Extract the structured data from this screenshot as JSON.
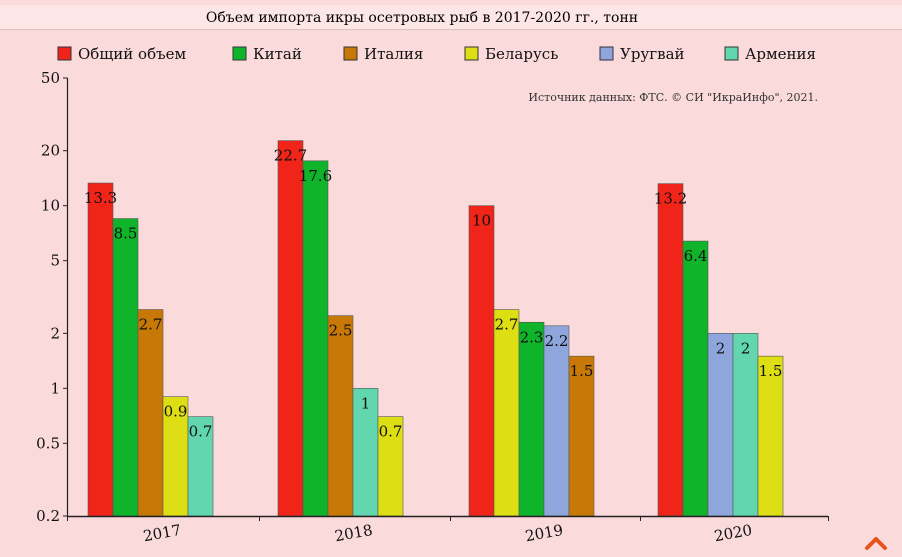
{
  "chart_data": {
    "type": "bar",
    "title": "Объем импорта икры осетровых рыб в 2017-2020 гг., тонн",
    "source_note": "Источник данных: ФТС. © СИ \"ИкраИнфо\", 2021.",
    "yscale": "log",
    "ylim": [
      0.2,
      50
    ],
    "yticks": [
      "50",
      "20",
      "10",
      "5",
      "2",
      "1",
      "0.5",
      "0.2"
    ],
    "ytick_values": [
      50,
      20,
      10,
      5,
      2,
      1,
      0.5,
      0.2
    ],
    "categories": [
      "2017",
      "2018",
      "2019",
      "2020"
    ],
    "legend_position": "top",
    "legend": [
      {
        "name": "Общий объем",
        "color": "#f02418"
      },
      {
        "name": "Китай",
        "color": "#10b42a"
      },
      {
        "name": "Италия",
        "color": "#c87806"
      },
      {
        "name": "Беларусь",
        "color": "#dede14"
      },
      {
        "name": "Уругвай",
        "color": "#8ea6dc"
      },
      {
        "name": "Армения",
        "color": "#62d6ae"
      }
    ],
    "groups": [
      {
        "category": "2017",
        "bars": [
          {
            "series": "Общий объем",
            "value": 13.3,
            "label": "13.3"
          },
          {
            "series": "Китай",
            "value": 8.5,
            "label": "8.5"
          },
          {
            "series": "Италия",
            "value": 2.7,
            "label": "2.7"
          },
          {
            "series": "Беларусь",
            "value": 0.9,
            "label": "0.9"
          },
          {
            "series": "Армения",
            "value": 0.7,
            "label": "0.7"
          }
        ]
      },
      {
        "category": "2018",
        "bars": [
          {
            "series": "Общий объем",
            "value": 22.7,
            "label": "22.7"
          },
          {
            "series": "Китай",
            "value": 17.6,
            "label": "17.6"
          },
          {
            "series": "Италия",
            "value": 2.5,
            "label": "2.5"
          },
          {
            "series": "Армения",
            "value": 1,
            "label": "1"
          },
          {
            "series": "Беларусь",
            "value": 0.7,
            "label": "0.7"
          }
        ]
      },
      {
        "category": "2019",
        "bars": [
          {
            "series": "Общий объем",
            "value": 10,
            "label": "10"
          },
          {
            "series": "Беларусь",
            "value": 2.7,
            "label": "2.7"
          },
          {
            "series": "Китай",
            "value": 2.3,
            "label": "2.3"
          },
          {
            "series": "Уругвай",
            "value": 2.2,
            "label": "2.2"
          },
          {
            "series": "Италия",
            "value": 1.5,
            "label": "1.5"
          }
        ]
      },
      {
        "category": "2020",
        "bars": [
          {
            "series": "Общий объем",
            "value": 13.2,
            "label": "13.2"
          },
          {
            "series": "Китай",
            "value": 6.4,
            "label": "6.4"
          },
          {
            "series": "Уругвай",
            "value": 2,
            "label": "2"
          },
          {
            "series": "Армения",
            "value": 2,
            "label": "2"
          },
          {
            "series": "Беларусь",
            "value": 1.5,
            "label": "1.5"
          }
        ]
      }
    ],
    "colors": {
      "background": "#fadadb",
      "title_bar": "#fce6e6",
      "axis": "#222222",
      "text": "#111111",
      "scroll_button": "#e8541c"
    }
  },
  "scroll_top_icon": "chevron-up-icon"
}
